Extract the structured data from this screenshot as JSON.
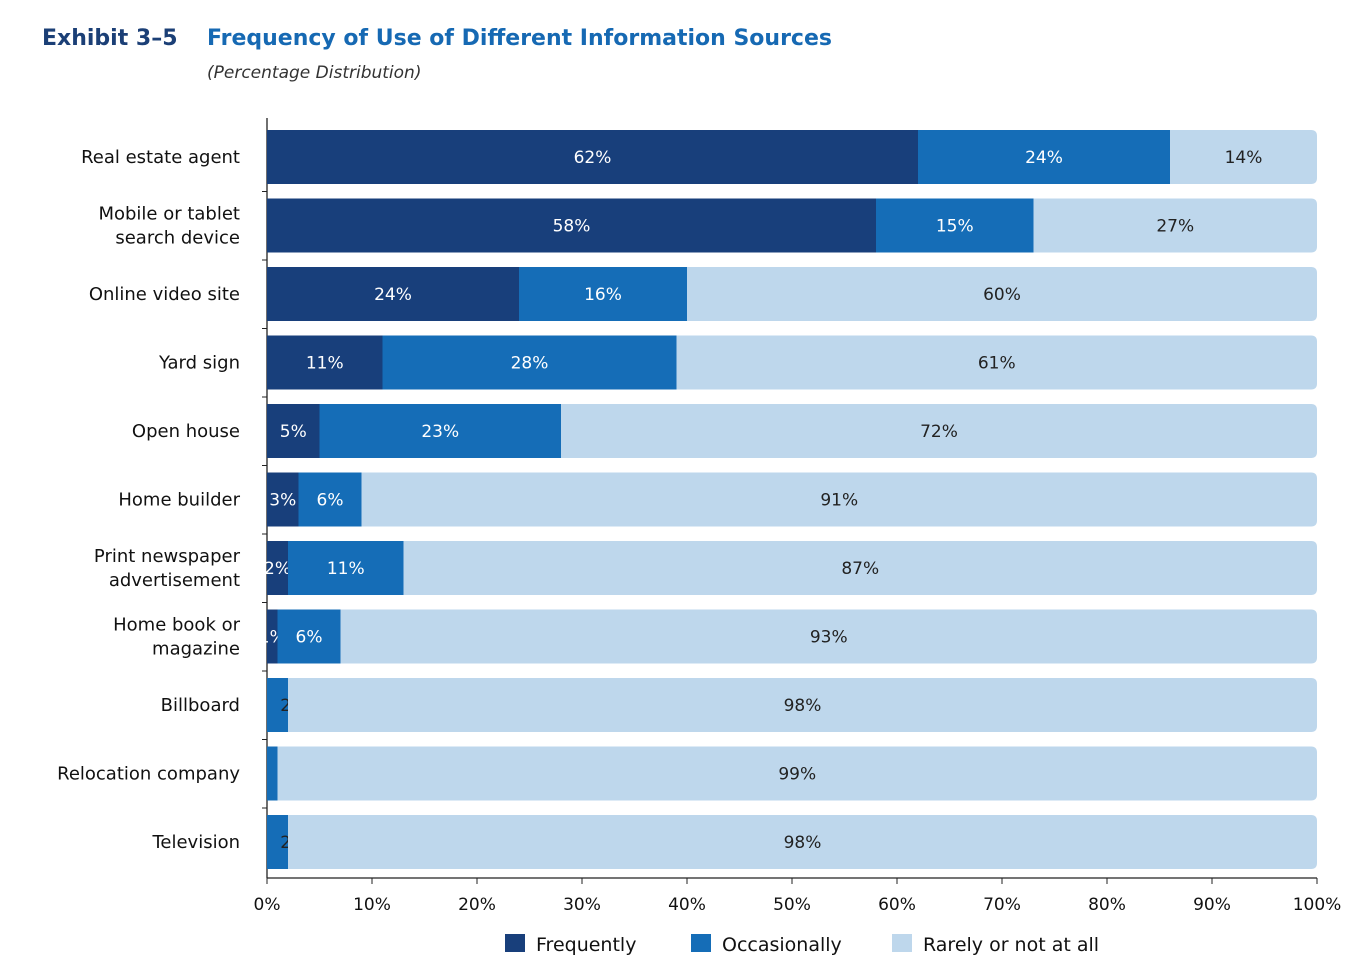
{
  "exhibit_label": "Exhibit 3–5",
  "chart_data": {
    "type": "bar",
    "orientation": "horizontal",
    "stacked": true,
    "title": "Frequency of Use of Different Information Sources",
    "subtitle": "(Percentage Distribution)",
    "categories": [
      [
        "Real estate agent"
      ],
      [
        "Mobile or tablet",
        "search device"
      ],
      [
        "Online video site"
      ],
      [
        "Yard sign"
      ],
      [
        "Open house"
      ],
      [
        "Home builder"
      ],
      [
        "Print newspaper",
        "advertisement"
      ],
      [
        "Home book or",
        "magazine"
      ],
      [
        "Billboard"
      ],
      [
        "Relocation company"
      ],
      [
        "Television"
      ]
    ],
    "series": [
      {
        "name": "Frequently",
        "color": "#183f7b",
        "values": [
          62,
          58,
          24,
          11,
          5,
          3,
          2,
          1,
          0,
          0,
          0
        ],
        "labels": [
          "62%",
          "58%",
          "24%",
          "11%",
          "5%",
          "3%",
          "2%",
          "1%",
          "*",
          "*",
          "*"
        ]
      },
      {
        "name": "Occasionally",
        "color": "#156db7",
        "values": [
          24,
          15,
          16,
          28,
          23,
          6,
          11,
          6,
          2,
          1,
          2
        ],
        "labels": [
          "24%",
          "15%",
          "16%",
          "28%",
          "23%",
          "6%",
          "11%",
          "6%",
          "2%",
          "1%",
          "2%"
        ]
      },
      {
        "name": "Rarely or not at all",
        "color": "#bed7ec",
        "values": [
          14,
          27,
          60,
          61,
          72,
          91,
          87,
          93,
          98,
          99,
          98
        ],
        "labels": [
          "14%",
          "27%",
          "60%",
          "61%",
          "72%",
          "91%",
          "87%",
          "93%",
          "98%",
          "99%",
          "98%"
        ]
      }
    ],
    "xlim": [
      0,
      100
    ],
    "xticks": [
      "0%",
      "10%",
      "20%",
      "30%",
      "40%",
      "50%",
      "60%",
      "70%",
      "80%",
      "90%",
      "100%"
    ],
    "grid": false,
    "legend": "bottom"
  }
}
